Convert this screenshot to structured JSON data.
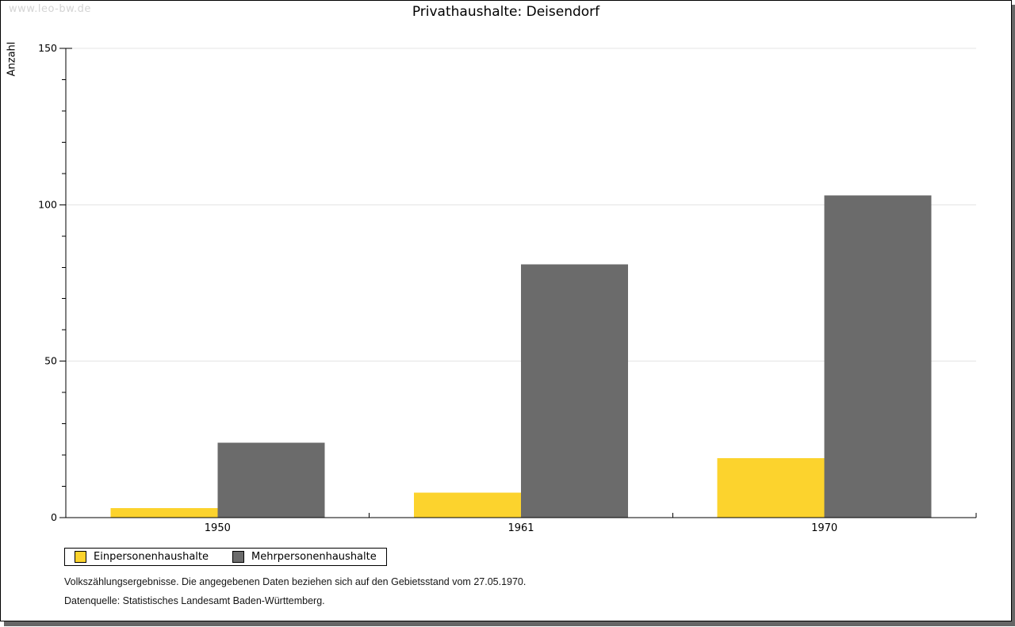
{
  "watermark": "www.leo-bw.de",
  "chart_data": {
    "type": "bar",
    "title": "Privathaushalte: Deisendorf",
    "xlabel": "",
    "ylabel": "Anzahl",
    "categories": [
      "1950",
      "1961",
      "1970"
    ],
    "series": [
      {
        "name": "Einpersonenhaushalte",
        "color": "#FCD32D",
        "values": [
          3,
          8,
          19
        ]
      },
      {
        "name": "Mehrpersonenhaushalte",
        "color": "#6B6B6B",
        "values": [
          24,
          81,
          103
        ]
      }
    ],
    "ylim": [
      0,
      150
    ],
    "ytick_step": 50,
    "minor_tick_step": 10,
    "grid": true,
    "legend_position": "bottom-left"
  },
  "footnotes": [
    "Volkszählungsergebnisse. Die angegebenen Daten beziehen sich auf den Gebietsstand vom 27.05.1970.",
    "Datenquelle: Statistisches Landesamt Baden-Württemberg."
  ],
  "colors": {
    "gridline": "#E4E4E4",
    "axis": "#000000",
    "watermark": "#D4D4D4",
    "shadow": "#666666",
    "background": "#FFFFFF"
  }
}
